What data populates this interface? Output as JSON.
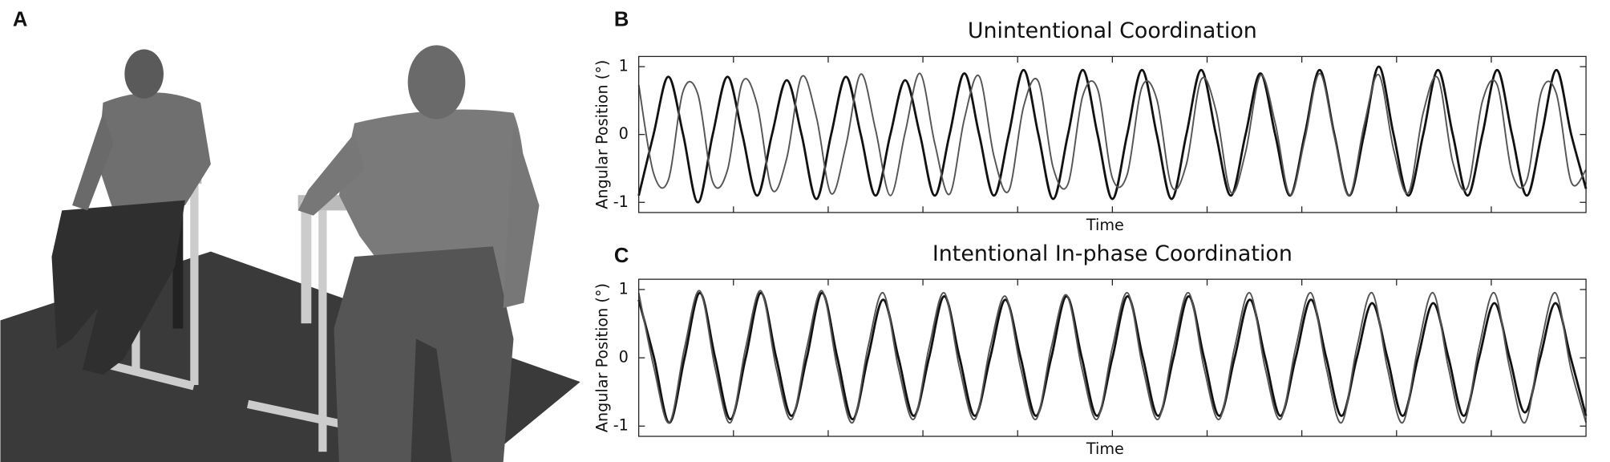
{
  "illustration": {
    "panel_label": "A"
  },
  "chart_data": [
    {
      "type": "line",
      "panel_label": "B",
      "title": "Unintentional Coordination",
      "xlabel": "Time",
      "ylabel": "Angular Position (°)",
      "ylim": [
        -1.15,
        1.15
      ],
      "yticks": [
        -1,
        0,
        1
      ],
      "series": [
        {
          "color": "#111111",
          "linewidth": 2.2,
          "values": [
            -0.9,
            0,
            0.85,
            0,
            -1.0,
            0,
            0.85,
            0,
            -0.9,
            0,
            0.8,
            0,
            -0.95,
            0,
            0.85,
            0,
            -0.9,
            0,
            0.8,
            0,
            -0.9,
            0,
            0.9,
            0,
            -0.9,
            0,
            0.95,
            0,
            -0.95,
            0,
            0.95,
            0,
            -0.95,
            0,
            0.95,
            0,
            -0.95,
            0,
            0.95,
            0,
            -0.9,
            0,
            0.9,
            0,
            -0.9,
            0,
            0.95,
            0,
            -0.9,
            0,
            1.0,
            0,
            -0.9,
            0,
            0.95,
            0,
            -0.9,
            0,
            0.95,
            0,
            -0.9,
            0,
            0.95,
            0,
            -0.8
          ]
        },
        {
          "color": "#555555",
          "linewidth": 1.5,
          "values": [
            0.73,
            -0.57,
            -0.67,
            0.64,
            0.59,
            -0.7,
            -0.52,
            0.77,
            0.44,
            -0.81,
            -0.35,
            0.85,
            0.26,
            -0.87,
            -0.16,
            0.89,
            0.07,
            -0.9,
            0.03,
            0.9,
            -0.13,
            -0.88,
            0.23,
            0.86,
            -0.32,
            -0.83,
            0.41,
            0.78,
            -0.49,
            -0.73,
            0.57,
            0.67,
            -0.64,
            -0.59,
            0.7,
            0.52,
            -0.76,
            -0.44,
            0.81,
            0.35,
            -0.85,
            -0.26,
            0.87,
            0.17,
            -0.89,
            -0.07,
            0.9,
            -0.03,
            -0.9,
            0.13,
            0.88,
            -0.22,
            -0.86,
            0.32,
            0.83,
            -0.41,
            -0.78,
            0.49,
            0.73,
            -0.57,
            -0.67,
            0.64,
            0.6,
            -0.7,
            -0.52
          ]
        }
      ]
    },
    {
      "type": "line",
      "panel_label": "C",
      "title": "Intentional In-phase Coordination",
      "xlabel": "Time",
      "ylabel": "Angular Position (°)",
      "ylim": [
        -1.15,
        1.15
      ],
      "yticks": [
        -1,
        0,
        1
      ],
      "series": [
        {
          "color": "#111111",
          "linewidth": 2.2,
          "values": [
            0.85,
            0,
            -0.95,
            0,
            0.95,
            0,
            -0.9,
            0,
            0.95,
            0,
            -0.85,
            0,
            0.95,
            0,
            -0.9,
            0,
            0.85,
            0,
            -0.85,
            0,
            0.9,
            0,
            -0.85,
            0,
            0.85,
            0,
            -0.85,
            0,
            0.9,
            0,
            -0.85,
            0,
            0.9,
            0,
            -0.85,
            0,
            0.9,
            0,
            -0.85,
            0,
            0.85,
            0,
            -0.85,
            0,
            0.85,
            0,
            -0.85,
            0,
            0.8,
            0,
            -0.85,
            0,
            0.8,
            0,
            -0.85,
            0,
            0.8,
            0,
            -0.8,
            0,
            0.8,
            0,
            -0.85
          ]
        },
        {
          "color": "#555555",
          "linewidth": 1.5,
          "values": [
            0.95,
            -0.15,
            -0.95,
            0.15,
            0.98,
            -0.15,
            -0.95,
            0.15,
            0.98,
            -0.15,
            -0.9,
            0.15,
            0.98,
            -0.15,
            -0.95,
            0.15,
            0.95,
            -0.15,
            -0.9,
            0.15,
            0.95,
            -0.15,
            -0.9,
            0.15,
            0.9,
            -0.15,
            -0.9,
            0.15,
            0.92,
            -0.15,
            -0.9,
            0.15,
            0.95,
            -0.15,
            -0.9,
            0.15,
            0.95,
            -0.15,
            -0.9,
            0.15,
            0.95,
            -0.15,
            -0.9,
            0.15,
            0.95,
            -0.15,
            -0.95,
            0.15,
            0.95,
            -0.15,
            -0.95,
            0.15,
            0.95,
            -0.15,
            -0.95,
            0.15,
            0.95,
            -0.15,
            -0.95,
            0.15,
            0.95,
            -0.15,
            -0.95
          ]
        }
      ]
    }
  ]
}
